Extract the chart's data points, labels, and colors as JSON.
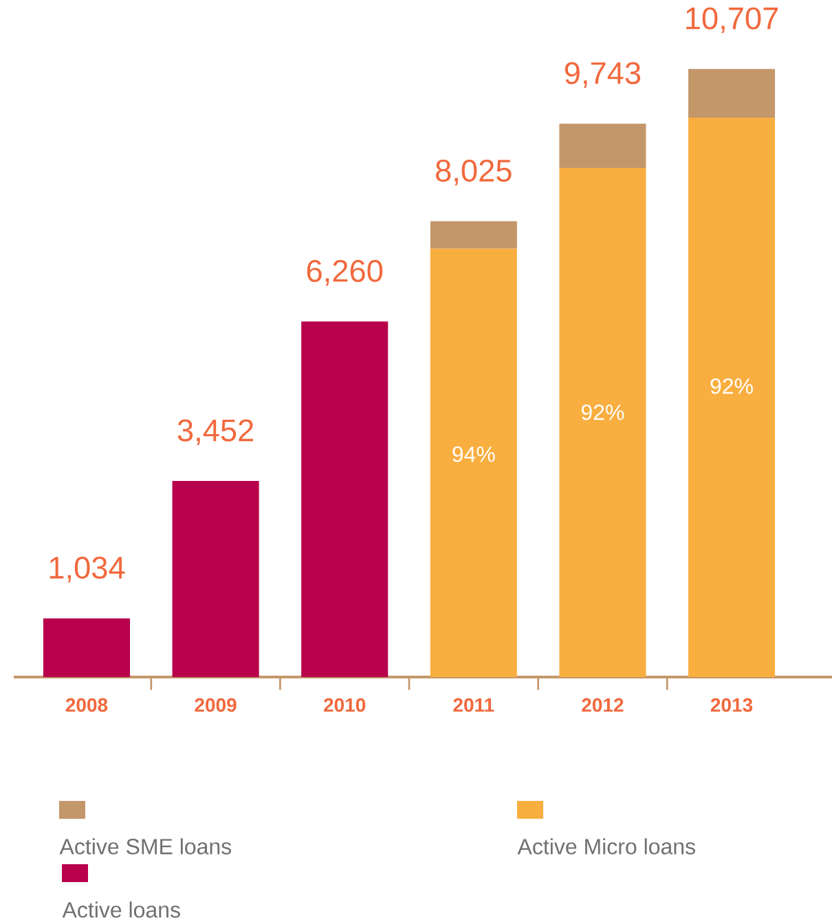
{
  "chart_data": {
    "type": "bar",
    "stacked": true,
    "legend": "bottom",
    "categories": [
      "2008",
      "2009",
      "2010",
      "2011",
      "2012",
      "2013"
    ],
    "series": [
      {
        "name": "Active loans",
        "color": "#b8004c",
        "values": [
          1034,
          3452,
          6260,
          null,
          null,
          null
        ],
        "value_labels": [
          "1,034",
          "3,452",
          "6,260",
          null,
          null,
          null
        ]
      },
      {
        "name": "Active Micro loans",
        "color": "#f9ae40",
        "values": [
          null,
          null,
          null,
          7544,
          8964,
          9850
        ]
      },
      {
        "name": "Active SME loans",
        "color": "#c4976b",
        "values": [
          null,
          null,
          null,
          481,
          779,
          857
        ]
      }
    ],
    "totals": [
      null,
      null,
      null,
      "8,025",
      "9,743",
      "10,707"
    ],
    "annotations": [
      "94%",
      "92%",
      "92%"
    ]
  }
}
